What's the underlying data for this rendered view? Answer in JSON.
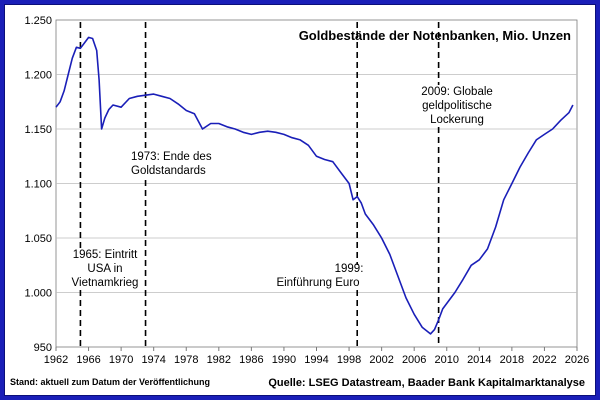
{
  "chart_data": {
    "type": "line",
    "title": "Goldbestände der Notenbanken, Mio. Unzen",
    "xlabel": "",
    "ylabel": "",
    "xlim": [
      1962,
      2026
    ],
    "ylim": [
      950,
      1250
    ],
    "grid": true,
    "y_ticks": [
      950,
      1000,
      1050,
      1100,
      1150,
      1200,
      1250
    ],
    "y_tick_labels": [
      "950",
      "1.000",
      "1.050",
      "1.100",
      "1.150",
      "1.200",
      "1.250"
    ],
    "x_ticks": [
      1962,
      1966,
      1970,
      1974,
      1978,
      1982,
      1986,
      1990,
      1994,
      1998,
      2002,
      2006,
      2010,
      2014,
      2018,
      2022,
      2026
    ],
    "line_color": "#1a1fb8",
    "series": [
      {
        "x": [
          1962.0,
          1962.5,
          1963.0,
          1963.5,
          1964.0,
          1964.5,
          1965.0,
          1965.5,
          1966.0,
          1966.5,
          1967.0,
          1967.3,
          1967.6,
          1968.0,
          1968.5,
          1969.0,
          1970.0,
          1971.0,
          1972.0,
          1973.0,
          1974.0,
          1975.0,
          1976.0,
          1977.0,
          1978.0,
          1979.0,
          1980.0,
          1981.0,
          1982.0,
          1983.0,
          1984.0,
          1985.0,
          1986.0,
          1987.0,
          1988.0,
          1989.0,
          1990.0,
          1991.0,
          1992.0,
          1993.0,
          1994.0,
          1995.0,
          1996.0,
          1997.0,
          1998.0,
          1998.5,
          1999.0,
          1999.5,
          2000.0,
          2001.0,
          2002.0,
          2003.0,
          2004.0,
          2005.0,
          2006.0,
          2007.0,
          2007.5,
          2008.0,
          2008.5,
          2009.0,
          2009.5,
          2010.0,
          2011.0,
          2012.0,
          2013.0,
          2014.0,
          2015.0,
          2016.0,
          2017.0,
          2018.0,
          2019.0,
          2020.0,
          2021.0,
          2022.0,
          2023.0,
          2024.0,
          2025.0,
          2025.5
        ],
        "values": [
          1170,
          1175,
          1185,
          1200,
          1215,
          1225,
          1224,
          1229,
          1234,
          1233,
          1222,
          1195,
          1150,
          1160,
          1168,
          1172,
          1170,
          1178,
          1180,
          1181,
          1182,
          1180,
          1178,
          1173,
          1167,
          1164,
          1150,
          1155,
          1155,
          1152,
          1150,
          1147,
          1145,
          1147,
          1148,
          1147,
          1145,
          1142,
          1140,
          1135,
          1125,
          1122,
          1120,
          1110,
          1100,
          1085,
          1088,
          1082,
          1072,
          1062,
          1050,
          1035,
          1015,
          995,
          980,
          968,
          965,
          962,
          966,
          975,
          985,
          990,
          1000,
          1012,
          1025,
          1030,
          1040,
          1060,
          1085,
          1100,
          1115,
          1128,
          1140,
          1145,
          1150,
          1158,
          1165,
          1172
        ]
      }
    ],
    "annotations": [
      {
        "x": 1965,
        "lines": [
          "1965: Eintritt",
          "USA in",
          "Vietnamkrieg"
        ]
      },
      {
        "x": 1973,
        "lines": [
          "1973: Ende des",
          "Goldstandards"
        ]
      },
      {
        "x": 1999,
        "lines": [
          "1999:",
          "Einführung Euro"
        ]
      },
      {
        "x": 2009,
        "lines": [
          "2009: Globale",
          "geldpolitische",
          "Lockerung"
        ]
      }
    ]
  },
  "footer": {
    "left": "Stand: aktuell zum Datum der Veröffentlichung",
    "right": "Quelle: LSEG Datastream, Baader Bank Kapitalmarktanalyse"
  }
}
